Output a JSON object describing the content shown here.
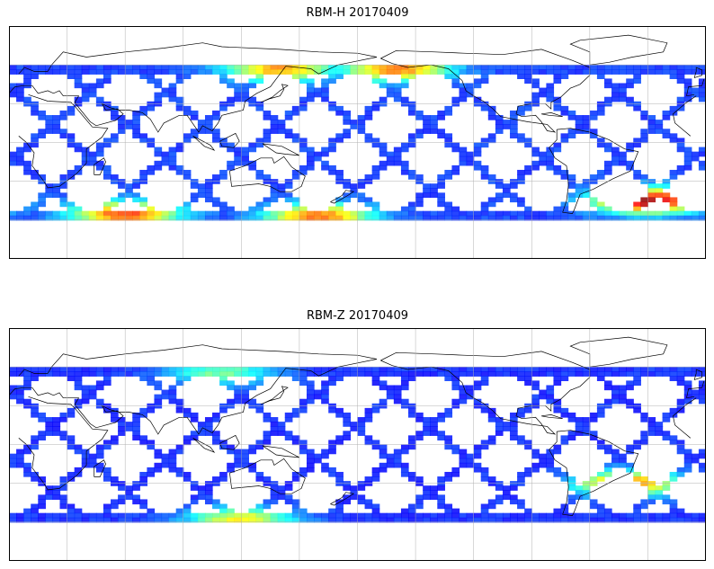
{
  "chart_data": [
    {
      "type": "heatmap",
      "title": "RBM-H 20170409",
      "projection": "cylindrical",
      "lon_range": [
        0,
        360
      ],
      "lat_range": [
        -90,
        90
      ],
      "data_lat_range": [
        -60,
        60
      ],
      "gridlines": true,
      "grid_lons": [
        30,
        60,
        90,
        120,
        150,
        180,
        210,
        240,
        270,
        300,
        330
      ],
      "grid_lats": [
        -60,
        -30,
        0,
        30,
        60
      ],
      "colormap": "jet",
      "background_level": 0.14,
      "hotspots": [
        {
          "region": "western North Pacific",
          "lon": 200,
          "lat": 57,
          "level": 0.75
        },
        {
          "region": "North Pacific high latitudes",
          "lon": 140,
          "lat": 57,
          "level": 0.7
        },
        {
          "region": "southern Indian Ocean",
          "lon": 60,
          "lat": -55,
          "level": 0.8
        },
        {
          "region": "Southern Ocean",
          "lon": 160,
          "lat": -57,
          "level": 0.75
        },
        {
          "region": "South Atlantic",
          "lon": 330,
          "lat": -45,
          "level": 0.95
        }
      ]
    },
    {
      "type": "heatmap",
      "title": "RBM-Z 20170409",
      "projection": "cylindrical",
      "lon_range": [
        0,
        360
      ],
      "lat_range": [
        -90,
        90
      ],
      "data_lat_range": [
        -60,
        60
      ],
      "gridlines": true,
      "grid_lons": [
        30,
        60,
        90,
        120,
        150,
        180,
        210,
        240,
        270,
        300,
        330
      ],
      "grid_lats": [
        -60,
        -30,
        0,
        30,
        60
      ],
      "colormap": "jet",
      "background_level": 0.12,
      "hotspots": [
        {
          "region": "South Atlantic",
          "lon": 320,
          "lat": -30,
          "level": 0.75
        },
        {
          "region": "Southern Ocean",
          "lon": 120,
          "lat": -58,
          "level": 0.6
        },
        {
          "region": "North Pacific",
          "lon": 110,
          "lat": 55,
          "level": 0.45
        }
      ]
    }
  ]
}
